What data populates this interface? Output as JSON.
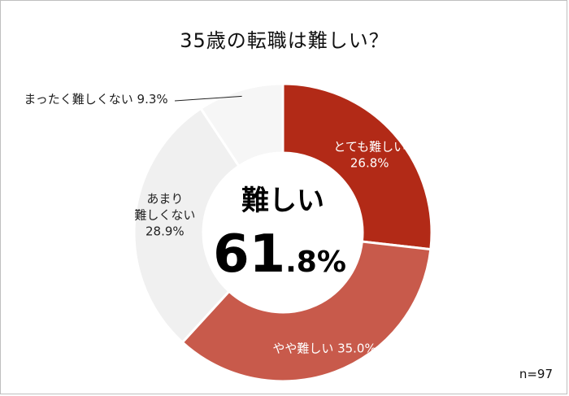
{
  "chart_data": {
    "type": "pie",
    "title": "35歳の転職は難しい？",
    "categories": [
      "とても難しい",
      "やや難しい",
      "あまり難しくない",
      "まったく難しくない"
    ],
    "values": [
      26.8,
      35.0,
      28.9,
      9.3
    ],
    "unit": "%",
    "colors": [
      "#b22a17",
      "#c85a4b",
      "#f0f0f0",
      "#f6f6f6"
    ],
    "labels": [
      {
        "lines": [
          "とても難しい",
          "26.8%"
        ]
      },
      {
        "lines": [
          "やや難しい 35.0%"
        ]
      },
      {
        "lines": [
          "あまり",
          "難しくない",
          "28.9%"
        ]
      },
      {
        "lines": [
          "まったく難しくない 9.3%"
        ]
      }
    ],
    "center": {
      "word": "難しい",
      "value_int": "61",
      "value_dec": ".8%"
    },
    "sample": "n=97"
  }
}
